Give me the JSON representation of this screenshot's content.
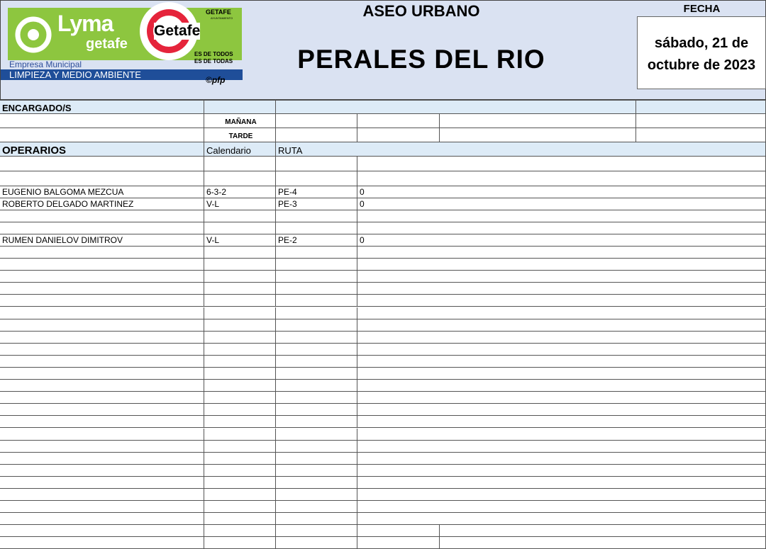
{
  "logo": {
    "brand": "Lyma",
    "brand_sub": "getafe",
    "company_line1": "Empresa Municipal",
    "company_line2": "LIMPIEZA Y MEDIO AMBIENTE",
    "city": "Getafe",
    "council": "GETAFE",
    "council_sub": "AYUNTAMIENTO",
    "slogan1": "ES DE TODOS",
    "slogan2": "ES DE TODAS",
    "credit": "©pfp"
  },
  "header": {
    "service": "ASEO URBANO",
    "zone": "PERALES DEL RIO",
    "date_label": "FECHA",
    "date_line1": "sábado, 21 de",
    "date_line2": "octubre de 2023"
  },
  "encargados": {
    "label": "ENCARGADO/S",
    "morning": "MAÑANA",
    "afternoon": "TARDE"
  },
  "operarios": {
    "label": "OPERARIOS",
    "calendar_header": "Calendario",
    "route_header": "RUTA",
    "rows": [
      {
        "name": "",
        "calendar": "",
        "route": "",
        "value": ""
      },
      {
        "name": "",
        "calendar": "",
        "route": "",
        "value": ""
      },
      {
        "name": "EUGENIO BALGOMA MEZCUA",
        "calendar": "6-3-2",
        "route": "PE-4",
        "value": "0"
      },
      {
        "name": "ROBERTO DELGADO MARTINEZ",
        "calendar": "V-L",
        "route": "PE-3",
        "value": "0"
      },
      {
        "name": "",
        "calendar": "",
        "route": "",
        "value": ""
      },
      {
        "name": "",
        "calendar": "",
        "route": "",
        "value": ""
      },
      {
        "name": "RUMEN DANIELOV DIMITROV",
        "calendar": "V-L",
        "route": "PE-2",
        "value": "0"
      }
    ]
  },
  "colors": {
    "header_bg": "#dae2f2",
    "section_bg": "#ddebf7",
    "lyma_green": "#8dc63f",
    "banner_blue": "#1f4e99"
  }
}
